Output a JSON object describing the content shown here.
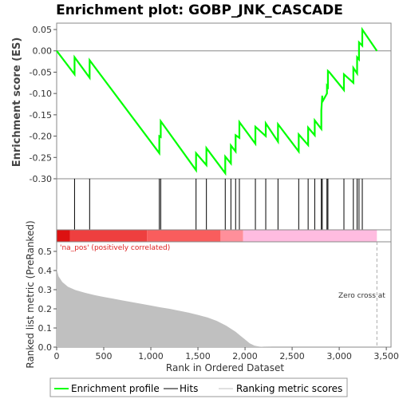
{
  "chart_data": {
    "type": "line",
    "title": "Enrichment plot: GOBP_JNK_CASCADE",
    "es_panel": {
      "ylabel": "Enrichment score (ES)",
      "ylim": [
        -0.3,
        0.065
      ],
      "yticks": [
        0.05,
        0.0,
        -0.05,
        -0.1,
        -0.15,
        -0.2,
        -0.25,
        -0.3
      ],
      "ytick_labels": [
        "0.05",
        "0.00",
        "-0.05",
        "-0.10",
        "-0.15",
        "-0.20",
        "-0.25",
        "-0.30"
      ],
      "series_color": "#00ff00",
      "x": [
        0,
        190,
        190,
        350,
        350,
        1090,
        1090,
        1105,
        1105,
        1480,
        1480,
        1590,
        1590,
        1790,
        1790,
        1850,
        1850,
        1900,
        1900,
        1940,
        1940,
        2110,
        2110,
        2220,
        2220,
        2350,
        2350,
        2570,
        2570,
        2670,
        2670,
        2740,
        2740,
        2810,
        2810,
        2820,
        2820,
        2870,
        2870,
        2880,
        2880,
        2895,
        2895,
        3050,
        3050,
        3150,
        3150,
        3190,
        3190,
        3210,
        3210,
        3245,
        3245,
        3400
      ],
      "y": [
        0.0,
        -0.055,
        -0.015,
        -0.063,
        -0.022,
        -0.24,
        -0.2,
        -0.202,
        -0.165,
        -0.28,
        -0.24,
        -0.268,
        -0.228,
        -0.287,
        -0.248,
        -0.264,
        -0.222,
        -0.236,
        -0.198,
        -0.204,
        -0.167,
        -0.218,
        -0.178,
        -0.2,
        -0.17,
        -0.213,
        -0.172,
        -0.236,
        -0.196,
        -0.221,
        -0.18,
        -0.198,
        -0.163,
        -0.183,
        -0.14,
        -0.105,
        -0.12,
        -0.1,
        -0.082,
        -0.085,
        -0.047,
        -0.05,
        -0.05,
        -0.092,
        -0.055,
        -0.075,
        -0.04,
        -0.053,
        -0.015,
        -0.02,
        0.02,
        0.012,
        0.05,
        0.0
      ]
    },
    "hits_panel": {
      "hit_positions": [
        190,
        350,
        1090,
        1105,
        1480,
        1590,
        1790,
        1850,
        1900,
        1940,
        2110,
        2220,
        2350,
        2570,
        2670,
        2740,
        2810,
        2820,
        2870,
        2880,
        3050,
        3150,
        3190,
        3210,
        3245
      ],
      "heat_segments": [
        {
          "from": 0,
          "to": 140,
          "color": "#dd1111"
        },
        {
          "from": 140,
          "to": 960,
          "color": "#ee3f3f"
        },
        {
          "from": 960,
          "to": 1740,
          "color": "#f95d5d"
        },
        {
          "from": 1740,
          "to": 1980,
          "color": "#ff8f9a"
        },
        {
          "from": 1980,
          "to": 3400,
          "color": "#ffbce0"
        }
      ],
      "pos_label": "'na_pos' (positively correlated)",
      "pos_label_color": "#dd2222"
    },
    "metric_panel": {
      "ylabel": "Ranked list metric (PreRanked)",
      "xlabel": "Rank in Ordered Dataset",
      "ylim": [
        0.0,
        0.55
      ],
      "yticks": [
        0.0,
        0.1,
        0.2,
        0.3,
        0.4,
        0.5
      ],
      "ytick_labels": [
        "0.0",
        "0.1",
        "0.2",
        "0.3",
        "0.4",
        "0.5"
      ],
      "xlim": [
        0,
        3550
      ],
      "xticks": [
        0,
        500,
        1000,
        1500,
        2000,
        2500,
        3000,
        3500
      ],
      "xtick_labels": [
        "0",
        "500",
        "1,000",
        "1,500",
        "2,000",
        "2,500",
        "3,000",
        "3,500"
      ],
      "fill_color": "#c0c0c0",
      "x": [
        0,
        20,
        60,
        120,
        200,
        300,
        400,
        500,
        600,
        700,
        800,
        900,
        1000,
        1100,
        1200,
        1300,
        1400,
        1500,
        1600,
        1700,
        1800,
        1900,
        1950,
        2000,
        2050,
        2100,
        2150,
        2200,
        2300,
        2400,
        2600,
        3000,
        3400
      ],
      "y": [
        0.41,
        0.37,
        0.34,
        0.315,
        0.298,
        0.284,
        0.272,
        0.262,
        0.253,
        0.244,
        0.235,
        0.226,
        0.217,
        0.208,
        0.2,
        0.19,
        0.18,
        0.168,
        0.155,
        0.137,
        0.112,
        0.08,
        0.06,
        0.04,
        0.02,
        0.008,
        0.003,
        0.001,
        0.0,
        0.0,
        0.0,
        0.0,
        0.0
      ],
      "zero_cross_label": "Zero cross at",
      "zero_cross_rank": 3400
    },
    "legend": {
      "placement": "bottom",
      "items": [
        {
          "label": "Enrichment profile",
          "color": "#00ff00"
        },
        {
          "label": "Hits",
          "color": "#000000"
        },
        {
          "label": "Ranking metric scores",
          "color": "#c0c0c0"
        }
      ]
    }
  }
}
